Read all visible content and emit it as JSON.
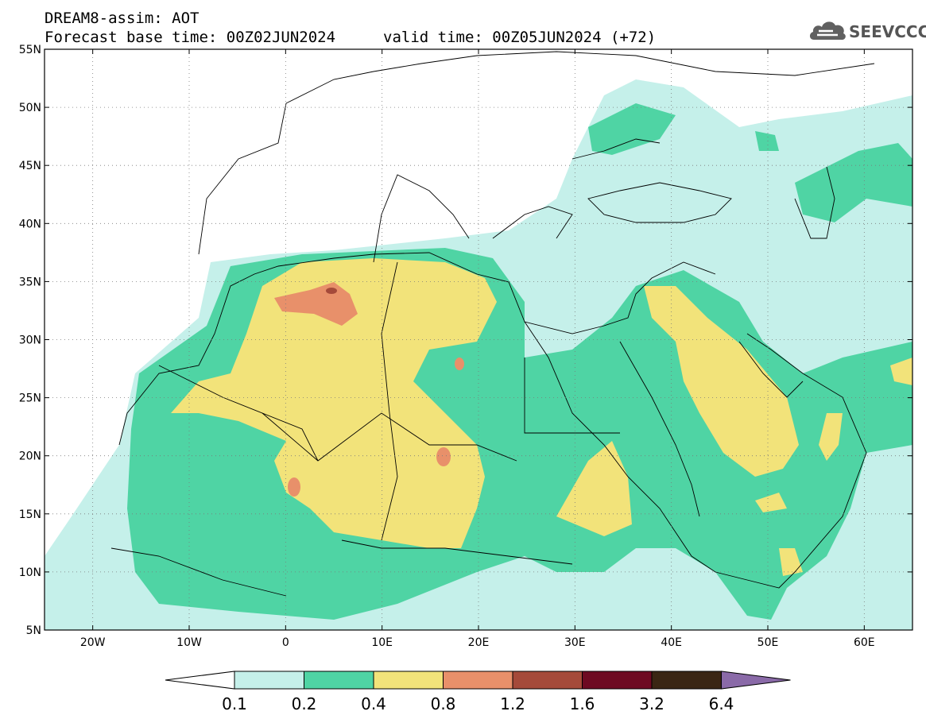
{
  "header": {
    "title_line1": "DREAM8-assim: AOT",
    "title_line2": "Forecast base time: 00Z02JUN2024",
    "valid_time": "valid time: 00Z05JUN2024 (+72)",
    "logo_text": "SEEVCCC",
    "logo_icon": "cloud-icon"
  },
  "map": {
    "lat_labels": [
      "55N",
      "50N",
      "45N",
      "40N",
      "35N",
      "30N",
      "25N",
      "20N",
      "15N",
      "10N",
      "5N"
    ],
    "lon_labels": [
      "20W",
      "10W",
      "0",
      "10E",
      "20E",
      "30E",
      "40E",
      "50E",
      "60E"
    ]
  },
  "colorbar": {
    "levels": [
      "0.1",
      "0.2",
      "0.4",
      "0.8",
      "1.2",
      "1.6",
      "3.2",
      "6.4"
    ],
    "colors": [
      "#ffffff",
      "#c5f0ea",
      "#4fd4a4",
      "#f2e37a",
      "#e8906a",
      "#a54a3a",
      "#6e0a22",
      "#3a2614",
      "#8a6aa8"
    ]
  }
}
